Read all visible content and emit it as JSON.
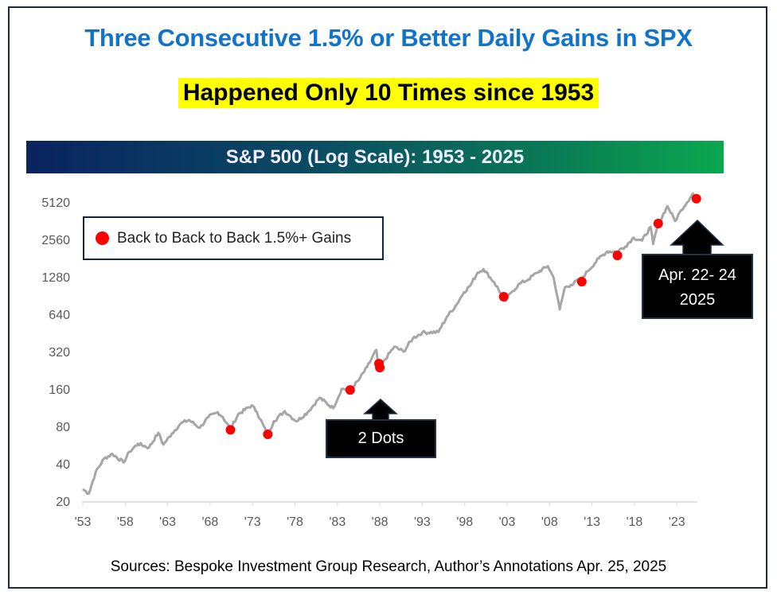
{
  "title": "Three Consecutive 1.5% or Better Daily Gains in SPX",
  "subtitle": "Happened Only 10 Times since 1953",
  "source": "Sources: Bespoke Investment Group Research, Author’s Annotations   Apr. 25, 2025",
  "callouts": {
    "dots": "2 Dots",
    "recent_line1": "Apr. 22- 24",
    "recent_line2": "2025"
  },
  "colors": {
    "title": "#1273c8",
    "highlight": "#ffff00",
    "line": "#a6a6a6",
    "marker": "#ff0000"
  },
  "chart_data": {
    "type": "line",
    "title": "S&P 500 (Log Scale): 1953 - 2025",
    "yscale": "log2",
    "ylim": [
      20,
      5120
    ],
    "xlim": [
      1953,
      2025.3
    ],
    "yticks": [
      20,
      40,
      80,
      160,
      320,
      640,
      1280,
      2560,
      5120
    ],
    "xticks": [
      "'53",
      "'58",
      "'63",
      "'68",
      "'73",
      "'78",
      "'83",
      "'88",
      "'93",
      "'98",
      "'03",
      "'08",
      "'13",
      "'18",
      "'23"
    ],
    "grid": false,
    "legend": {
      "position": "top-left",
      "entries": [
        "Back to Back to Back 1.5%+ Gains"
      ]
    },
    "series": [
      {
        "x": [
          1953,
          1953.7,
          1954.5,
          1955.5,
          1956.5,
          1957.8,
          1958.5,
          1959.5,
          1960.8,
          1961.9,
          1962.5,
          1963.5,
          1964.5,
          1965.5,
          1966.8,
          1967.8,
          1968.9,
          1969.5,
          1970.4,
          1971.3,
          1972.9,
          1973.5,
          1974.8,
          1975.5,
          1976.8,
          1977.5,
          1978.2,
          1979.5,
          1980.9,
          1982.5,
          1983.5,
          1984.5,
          1985.5,
          1986.5,
          1987.6,
          1987.85,
          1988.5,
          1989.7,
          1990.8,
          1991.9,
          1993,
          1994.9,
          1995.9,
          1996.9,
          1997.9,
          1998.7,
          1999.5,
          2000.2,
          2001.5,
          2002.8,
          2003.5,
          2004.5,
          2005.5,
          2006.5,
          2007.8,
          2008.5,
          2009.2,
          2009.8,
          2010.5,
          2011.8,
          2012.5,
          2013.8,
          2014.8,
          2015.9,
          2016.9,
          2017.9,
          2018.9,
          2019.9,
          2020.2,
          2020.8,
          2021.9,
          2022.8,
          2023.5,
          2024.9,
          2025.1,
          2025.3
        ],
        "y": [
          25,
          23,
          34,
          44,
          48,
          41,
          50,
          58,
          54,
          71,
          57,
          70,
          84,
          90,
          78,
          95,
          104,
          95,
          76,
          100,
          118,
          105,
          68,
          88,
          106,
          96,
          88,
          104,
          136,
          112,
          160,
          158,
          188,
          240,
          330,
          230,
          270,
          350,
          320,
          410,
          455,
          460,
          610,
          740,
          960,
          1100,
          1380,
          1480,
          1150,
          820,
          960,
          1130,
          1220,
          1380,
          1560,
          1250,
          700,
          1050,
          1100,
          1250,
          1420,
          1800,
          2050,
          2040,
          2240,
          2650,
          2500,
          3230,
          2350,
          3400,
          4750,
          3600,
          4400,
          6000,
          5300,
          5550
        ]
      }
    ],
    "markers": {
      "name": "Back to Back to Back 1.5%+ Gains",
      "x": [
        1970.4,
        1974.8,
        1984.5,
        1987.9,
        1988.0,
        2002.6,
        2011.8,
        2016.0,
        2020.8,
        2025.3
      ],
      "y": [
        75,
        69,
        157,
        256,
        238,
        886,
        1170,
        1903,
        3440,
        5450
      ]
    }
  }
}
